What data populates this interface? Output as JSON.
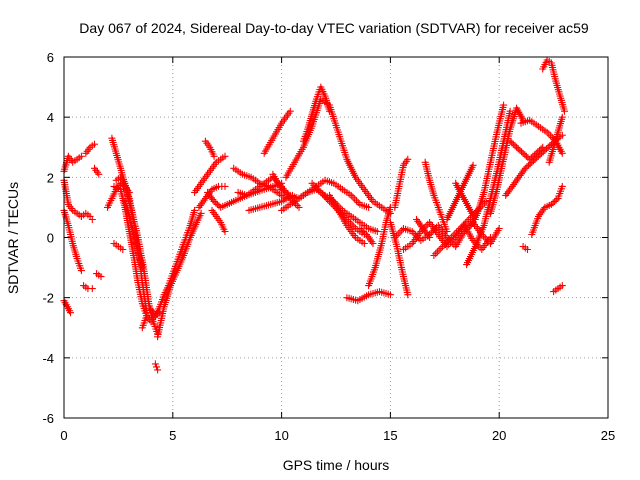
{
  "chart_data": {
    "type": "scatter",
    "title": "Day 067 of 2024, Sidereal Day-to-day VTEC variation (SDTVAR) for receiver ac59",
    "xlabel": "GPS time / hours",
    "ylabel": "SDTVAR / TECUs",
    "xlim": [
      0,
      25
    ],
    "ylim": [
      -6,
      6
    ],
    "xticks": [
      0,
      5,
      10,
      15,
      20,
      25
    ],
    "yticks": [
      -6,
      -4,
      -2,
      0,
      2,
      4,
      6
    ],
    "grid": true,
    "marker": "+",
    "color": "#ff0000",
    "series": [
      {
        "name": "t0",
        "x": [
          0.0,
          0.2,
          0.4,
          0.6,
          0.8
        ],
        "y": [
          2.2,
          2.7,
          2.5,
          2.6,
          2.7
        ]
      },
      {
        "name": "t1",
        "x": [
          0.0,
          0.2,
          0.4,
          0.6,
          0.8
        ],
        "y": [
          1.9,
          1.1,
          0.9,
          0.8,
          0.7
        ]
      },
      {
        "name": "t2",
        "x": [
          0.0,
          0.2,
          0.4,
          0.6,
          0.8
        ],
        "y": [
          0.9,
          0.4,
          -0.2,
          -0.7,
          -1.1
        ]
      },
      {
        "name": "t3",
        "x": [
          0.0,
          0.15,
          0.3
        ],
        "y": [
          -2.1,
          -2.3,
          -2.5
        ]
      },
      {
        "name": "t4",
        "x": [
          0.8,
          1.0,
          1.2,
          1.3
        ],
        "y": [
          0.7,
          0.8,
          0.7,
          0.6
        ]
      },
      {
        "name": "t5",
        "x": [
          1.0,
          1.2,
          1.4
        ],
        "y": [
          2.8,
          3.0,
          3.1
        ]
      },
      {
        "name": "t6",
        "x": [
          1.4,
          1.6
        ],
        "y": [
          2.3,
          2.1
        ]
      },
      {
        "name": "t7",
        "x": [
          0.9,
          1.1,
          1.3
        ],
        "y": [
          -1.6,
          -1.7,
          -1.7
        ]
      },
      {
        "name": "t8",
        "x": [
          1.5,
          1.7
        ],
        "y": [
          -1.2,
          -1.3
        ]
      },
      {
        "name": "t9",
        "x": [
          2.2,
          2.6,
          3.0,
          3.4,
          3.7,
          3.9,
          4.1,
          4.3
        ],
        "y": [
          3.3,
          2.3,
          1.2,
          0.0,
          -1.2,
          -2.2,
          -2.8,
          -3.2
        ]
      },
      {
        "name": "t10",
        "x": [
          2.3,
          2.6,
          2.8,
          3.0,
          3.2,
          3.4,
          3.6,
          3.8
        ],
        "y": [
          1.7,
          1.6,
          1.0,
          0.2,
          -0.6,
          -1.5,
          -2.2,
          -2.6
        ]
      },
      {
        "name": "t11",
        "x": [
          2.4,
          2.6,
          2.8,
          3.0,
          3.2,
          3.4,
          3.6,
          3.8
        ],
        "y": [
          1.9,
          2.0,
          1.8,
          1.3,
          0.6,
          -0.3,
          -1.5,
          -2.5
        ]
      },
      {
        "name": "t12",
        "x": [
          3.6,
          3.8,
          4.0,
          4.2,
          4.4,
          4.6,
          4.8,
          5.0,
          5.2,
          5.4,
          5.6,
          5.8,
          6.0
        ],
        "y": [
          -3.0,
          -2.6,
          -2.8,
          -2.6,
          -2.3,
          -1.9,
          -1.6,
          -1.2,
          -0.8,
          -0.4,
          0.0,
          0.4,
          0.9
        ]
      },
      {
        "name": "t13",
        "x": [
          4.3,
          4.6,
          4.9,
          5.2,
          5.5,
          5.8,
          6.1,
          6.3
        ],
        "y": [
          -3.3,
          -2.3,
          -1.6,
          -1.1,
          -0.6,
          0.0,
          0.5,
          0.8
        ]
      },
      {
        "name": "t14",
        "x": [
          4.2,
          4.3
        ],
        "y": [
          -4.2,
          -4.4
        ]
      },
      {
        "name": "t15",
        "x": [
          2.3,
          2.5,
          2.7
        ],
        "y": [
          -0.2,
          -0.3,
          -0.4
        ]
      },
      {
        "name": "t16",
        "x": [
          6.0,
          6.2,
          6.4,
          6.6,
          6.8,
          7.0,
          7.2,
          7.4
        ],
        "y": [
          1.5,
          1.7,
          1.9,
          2.1,
          2.3,
          2.5,
          2.6,
          2.7
        ]
      },
      {
        "name": "t17",
        "x": [
          6.5,
          6.7,
          6.9
        ],
        "y": [
          3.2,
          3.0,
          2.7
        ]
      },
      {
        "name": "t18",
        "x": [
          6.2,
          6.5,
          6.8,
          7.1,
          7.4
        ],
        "y": [
          1.0,
          1.3,
          1.6,
          1.7,
          1.7
        ]
      },
      {
        "name": "t19",
        "x": [
          6.6,
          6.9,
          7.2,
          7.5,
          7.8,
          8.1,
          8.4,
          8.8,
          9.2,
          9.6,
          10.0
        ],
        "y": [
          1.5,
          1.2,
          1.0,
          1.1,
          1.2,
          1.3,
          1.4,
          1.5,
          1.6,
          1.7,
          1.8
        ]
      },
      {
        "name": "t20",
        "x": [
          6.8,
          7.0,
          7.2,
          7.4
        ],
        "y": [
          0.9,
          0.7,
          0.5,
          0.2
        ]
      },
      {
        "name": "t21",
        "x": [
          7.8,
          8.2,
          8.6,
          9.0,
          9.4,
          9.8,
          10.2
        ],
        "y": [
          2.3,
          2.1,
          2.0,
          1.8,
          1.7,
          1.5,
          1.3
        ]
      },
      {
        "name": "t22",
        "x": [
          8.0,
          8.4,
          8.8,
          9.2,
          9.6,
          10.0,
          10.4,
          10.8
        ],
        "y": [
          1.5,
          1.4,
          1.6,
          1.8,
          2.0,
          1.7,
          1.3,
          1.0
        ]
      },
      {
        "name": "t23",
        "x": [
          8.5,
          9.0,
          9.5,
          10.0,
          10.5
        ],
        "y": [
          0.9,
          1.0,
          1.1,
          1.2,
          1.4
        ]
      },
      {
        "name": "t24",
        "x": [
          9.6,
          10.0,
          10.4,
          10.8,
          11.2,
          11.6,
          12.0,
          12.4,
          12.8,
          13.2,
          13.6,
          14.0
        ],
        "y": [
          2.1,
          1.6,
          1.4,
          1.3,
          1.5,
          1.7,
          1.9,
          1.8,
          1.6,
          1.4,
          1.1,
          1.0
        ]
      },
      {
        "name": "t25",
        "x": [
          10.0,
          10.4,
          10.8,
          11.2,
          11.6,
          12.0,
          12.4,
          12.8,
          13.2,
          13.6,
          14.0,
          14.4
        ],
        "y": [
          0.9,
          1.1,
          1.3,
          1.5,
          1.6,
          1.4,
          1.2,
          0.9,
          0.7,
          0.5,
          0.3,
          0.2
        ]
      },
      {
        "name": "t26",
        "x": [
          10.2,
          10.6,
          11.0,
          11.4,
          11.8,
          12.2,
          12.6,
          13.0,
          13.4,
          13.8,
          14.2,
          14.6,
          15.0
        ],
        "y": [
          2.0,
          2.5,
          3.0,
          3.7,
          4.6,
          4.4,
          3.5,
          2.6,
          2.0,
          1.6,
          1.2,
          1.0,
          0.8
        ]
      },
      {
        "name": "t27",
        "x": [
          11.0,
          11.2,
          11.4,
          11.6,
          11.8,
          12.0,
          12.2
        ],
        "y": [
          3.2,
          3.6,
          4.1,
          4.6,
          5.0,
          4.7,
          4.2
        ]
      },
      {
        "name": "t28",
        "x": [
          9.2,
          9.6,
          10.0,
          10.4
        ],
        "y": [
          2.8,
          3.3,
          3.8,
          4.2
        ]
      },
      {
        "name": "t29",
        "x": [
          11.4,
          11.8,
          12.2,
          12.6,
          13.0,
          13.4,
          13.8
        ],
        "y": [
          1.8,
          1.5,
          1.2,
          0.9,
          0.6,
          0.3,
          0.1
        ]
      },
      {
        "name": "t30",
        "x": [
          12.2,
          12.6,
          13.0,
          13.4,
          13.8
        ],
        "y": [
          1.4,
          0.9,
          0.4,
          0.0,
          -0.2
        ]
      },
      {
        "name": "t31",
        "x": [
          13.0,
          13.5,
          14.0,
          14.5,
          15.0
        ],
        "y": [
          -2.0,
          -2.1,
          -1.9,
          -1.8,
          -1.9
        ]
      },
      {
        "name": "t32",
        "x": [
          14.0,
          14.3,
          14.6,
          14.8,
          15.0
        ],
        "y": [
          -1.6,
          -1.0,
          -0.2,
          0.5,
          1.0
        ]
      },
      {
        "name": "t33",
        "x": [
          15.0,
          15.3,
          15.6,
          15.8
        ],
        "y": [
          0.5,
          -0.3,
          -1.3,
          -1.9
        ]
      },
      {
        "name": "t34",
        "x": [
          15.2,
          15.4,
          15.6,
          15.8
        ],
        "y": [
          1.0,
          1.7,
          2.4,
          2.6
        ]
      },
      {
        "name": "t35",
        "x": [
          15.2,
          15.6,
          16.0,
          16.4,
          16.8,
          17.2,
          17.6,
          18.0,
          18.4,
          18.8,
          19.2,
          19.6,
          20.0
        ],
        "y": [
          0.0,
          0.3,
          0.2,
          -0.1,
          0.1,
          0.4,
          0.0,
          -0.3,
          0.2,
          0.5,
          0.1,
          -0.2,
          0.3
        ]
      },
      {
        "name": "t36",
        "x": [
          15.6,
          16.0,
          16.4,
          16.8,
          17.2,
          17.6,
          18.0,
          18.4,
          18.8,
          19.2,
          19.6
        ],
        "y": [
          -0.4,
          -0.2,
          0.2,
          0.5,
          0.1,
          -0.3,
          0.0,
          0.4,
          -0.1,
          -0.4,
          0.0
        ]
      },
      {
        "name": "t37",
        "x": [
          16.6,
          16.8,
          17.0,
          17.2,
          17.4,
          17.6
        ],
        "y": [
          2.5,
          1.9,
          1.4,
          1.0,
          0.6,
          0.2
        ]
      },
      {
        "name": "t38",
        "x": [
          17.0,
          17.4,
          17.8,
          18.2,
          18.6,
          19.0,
          19.4
        ],
        "y": [
          -0.6,
          -0.3,
          0.0,
          0.3,
          0.6,
          0.9,
          1.2
        ]
      },
      {
        "name": "t39",
        "x": [
          17.6,
          18.0,
          18.4,
          18.8
        ],
        "y": [
          0.6,
          1.2,
          1.8,
          2.4
        ]
      },
      {
        "name": "t40",
        "x": [
          18.5,
          18.9,
          19.3,
          19.6,
          19.9,
          20.2,
          20.5
        ],
        "y": [
          -0.9,
          -0.3,
          0.4,
          1.3,
          2.2,
          3.2,
          4.2
        ]
      },
      {
        "name": "t41",
        "x": [
          18.7,
          19.0,
          19.3,
          19.6,
          19.9,
          20.2
        ],
        "y": [
          0.4,
          0.8,
          1.5,
          2.5,
          3.5,
          4.4
        ]
      },
      {
        "name": "t42",
        "x": [
          19.6,
          19.9,
          20.2,
          20.5,
          20.8,
          21.1
        ],
        "y": [
          0.8,
          1.6,
          2.6,
          3.6,
          4.3,
          3.9
        ]
      },
      {
        "name": "t43",
        "x": [
          20.3,
          20.6,
          20.9,
          21.2,
          21.5,
          21.8,
          22.1,
          22.4,
          22.7,
          22.9
        ],
        "y": [
          1.4,
          1.7,
          2.0,
          2.3,
          2.5,
          2.7,
          2.9,
          3.1,
          3.3,
          3.4
        ]
      },
      {
        "name": "t44",
        "x": [
          20.5,
          20.8,
          21.1,
          21.4,
          21.7,
          22.0
        ],
        "y": [
          3.2,
          3.0,
          2.8,
          2.6,
          2.8,
          3.0
        ]
      },
      {
        "name": "t45",
        "x": [
          21.0,
          21.4,
          21.8,
          22.2,
          22.6,
          22.9
        ],
        "y": [
          3.8,
          3.9,
          3.7,
          3.5,
          3.2,
          2.8
        ]
      },
      {
        "name": "t46",
        "x": [
          22.0,
          22.2,
          22.4,
          22.6,
          22.8,
          23.0
        ],
        "y": [
          5.6,
          5.9,
          5.8,
          5.2,
          4.7,
          4.2
        ]
      },
      {
        "name": "t47",
        "x": [
          22.3,
          22.5,
          22.7,
          22.9
        ],
        "y": [
          2.5,
          3.0,
          3.5,
          4.0
        ]
      },
      {
        "name": "t48",
        "x": [
          21.5,
          21.8,
          22.1,
          22.4,
          22.7,
          22.9
        ],
        "y": [
          0.1,
          0.7,
          1.0,
          1.1,
          1.3,
          1.7
        ]
      },
      {
        "name": "t49",
        "x": [
          21.1,
          21.3
        ],
        "y": [
          -0.3,
          -0.4
        ]
      },
      {
        "name": "t50",
        "x": [
          22.5,
          22.7,
          22.9
        ],
        "y": [
          -1.8,
          -1.7,
          -1.6
        ]
      },
      {
        "name": "t51",
        "x": [
          2.0,
          2.2,
          2.4,
          2.6,
          2.8,
          3.0
        ],
        "y": [
          1.0,
          1.3,
          1.6,
          1.8,
          1.7,
          1.5
        ]
      },
      {
        "name": "t52",
        "x": [
          2.8,
          3.0,
          3.2,
          3.4,
          3.6
        ],
        "y": [
          1.2,
          0.7,
          0.1,
          -0.5,
          -1.0
        ]
      },
      {
        "name": "t53",
        "x": [
          4.0,
          4.2,
          4.4
        ],
        "y": [
          -2.4,
          -2.6,
          -2.5
        ]
      },
      {
        "name": "t54",
        "x": [
          13.6,
          13.9,
          14.2
        ],
        "y": [
          0.3,
          0.1,
          -0.2
        ]
      },
      {
        "name": "t55",
        "x": [
          16.2,
          16.5,
          16.8
        ],
        "y": [
          0.6,
          0.3,
          0.0
        ]
      },
      {
        "name": "t56",
        "x": [
          18.0,
          18.3,
          18.6,
          18.9
        ],
        "y": [
          1.8,
          1.4,
          1.0,
          0.6
        ]
      }
    ]
  }
}
